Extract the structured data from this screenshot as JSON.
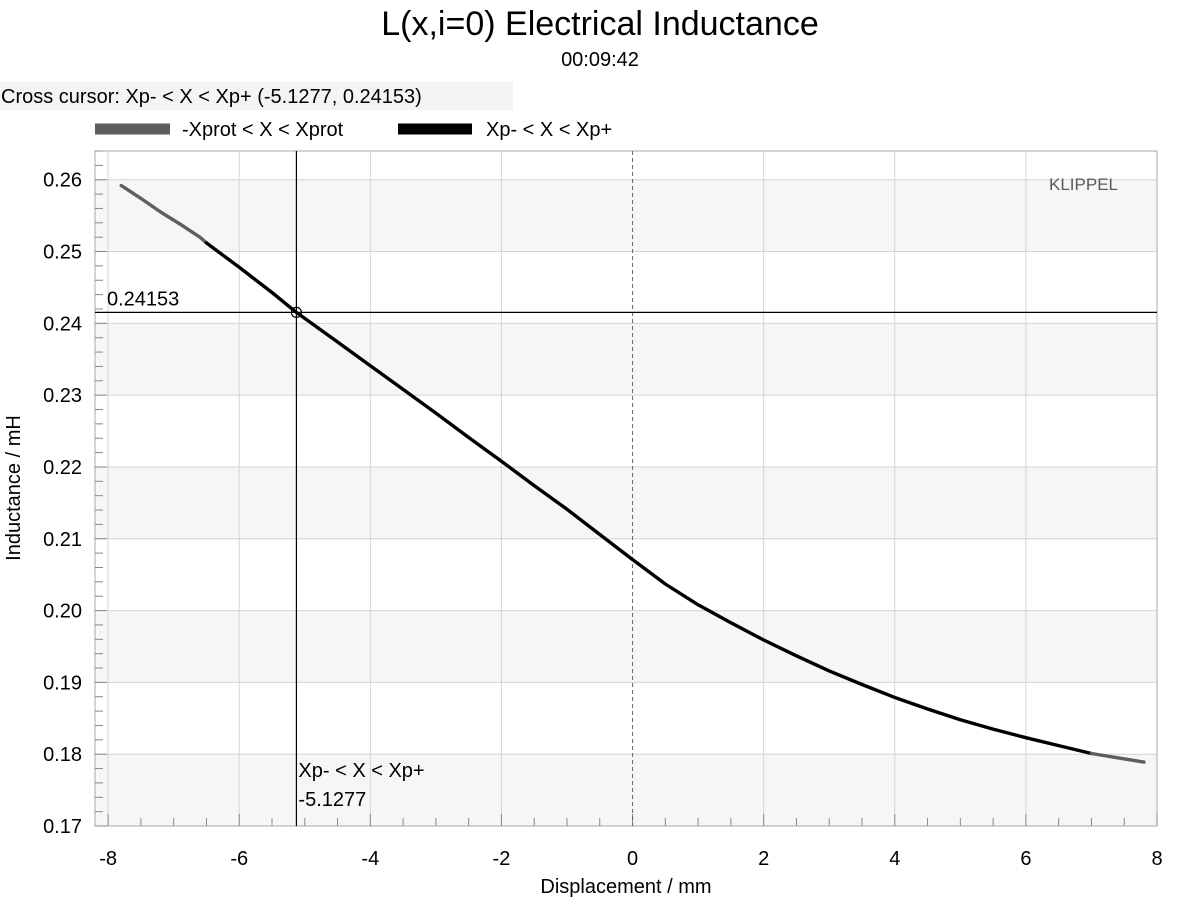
{
  "cursor_info": "Cross cursor: Xp- < X < Xp+ (-5.1277, 0.24153)",
  "watermark": "KLIPPEL",
  "chart_data": {
    "type": "line",
    "title": "L(x,i=0) Electrical Inductance",
    "subtitle": "00:09:42",
    "xlabel": "Displacement / mm",
    "ylabel": "Inductance / mH",
    "xlim": [
      -8.2,
      8.0
    ],
    "ylim": [
      0.17,
      0.264
    ],
    "xticks": [
      -8,
      -6,
      -4,
      -2,
      0,
      2,
      4,
      6,
      8
    ],
    "xtick_labels": [
      "-8",
      "-6",
      "-4",
      "-2",
      "0",
      "2",
      "4",
      "6",
      "8"
    ],
    "yticks": [
      0.17,
      0.18,
      0.19,
      0.2,
      0.21,
      0.22,
      0.23,
      0.24,
      0.25,
      0.26
    ],
    "ytick_labels": [
      "0.17",
      "0.18",
      "0.19",
      "0.20",
      "0.21",
      "0.22",
      "0.23",
      "0.24",
      "0.25",
      "0.26"
    ],
    "grid": true,
    "legend_position": "top-left",
    "series": [
      {
        "name": "-Xprot < X < Xprot",
        "color": "#5e5e5e",
        "x": [
          -7.8,
          -7.5,
          -7.2,
          -6.9,
          -6.6,
          -6.5
        ],
        "y": [
          0.2592,
          0.2574,
          0.2555,
          0.2538,
          0.252,
          0.2512
        ]
      },
      {
        "name": "Xp- < X < Xp+",
        "color": "#000000",
        "x": [
          -6.5,
          -6.0,
          -5.5,
          -5.1277,
          -4.5,
          -4.0,
          -3.5,
          -3.0,
          -2.5,
          -2.0,
          -1.5,
          -1.0,
          -0.5,
          0.0,
          0.5,
          1.0,
          1.5,
          2.0,
          2.5,
          3.0,
          3.5,
          4.0,
          4.5,
          5.0,
          5.5,
          6.0,
          6.5,
          7.0
        ],
        "y": [
          0.2512,
          0.2478,
          0.2443,
          0.24153,
          0.2374,
          0.2341,
          0.2308,
          0.2275,
          0.2241,
          0.2208,
          0.2174,
          0.2141,
          0.2106,
          0.2071,
          0.2037,
          0.2008,
          0.1983,
          0.1959,
          0.1937,
          0.1916,
          0.1897,
          0.1879,
          0.1863,
          0.1848,
          0.1835,
          0.1823,
          0.1812,
          0.1801
        ]
      },
      {
        "name": "-Xprot < X < Xprot",
        "color": "#5e5e5e",
        "x": [
          7.0,
          7.4,
          7.8
        ],
        "y": [
          0.1801,
          0.1795,
          0.1789
        ]
      }
    ],
    "cursor": {
      "x": -5.1277,
      "y": 0.24153,
      "x_label": "-5.1277",
      "y_label": "0.24153",
      "series_label": "Xp- < X < Xp+"
    }
  }
}
